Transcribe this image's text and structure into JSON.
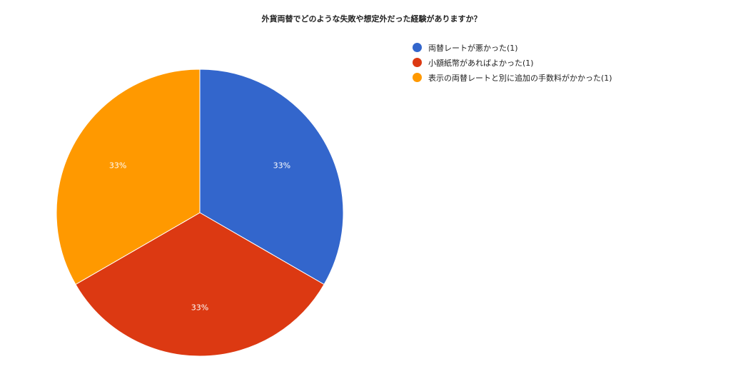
{
  "chart_data": {
    "type": "pie",
    "title": "外貨両替でどのような失敗や想定外だった経験がありますか？",
    "categories": [
      "両替レートが悪かった",
      "小額紙幣があればよかった",
      "表示の両替レートと別に追加の手数料がかかった"
    ],
    "values": [
      1,
      1,
      1
    ],
    "data_labels": [
      "33%",
      "33%",
      "33%"
    ],
    "colors": [
      "#3366cc",
      "#dc3912",
      "#ff9900"
    ],
    "legend": {
      "position": "right",
      "entries": [
        "両替レートが悪かった(1)",
        "小額紙幣があればよかった(1)",
        "表示の両替レートと別に追加の手数料がかかった(1)"
      ]
    }
  }
}
